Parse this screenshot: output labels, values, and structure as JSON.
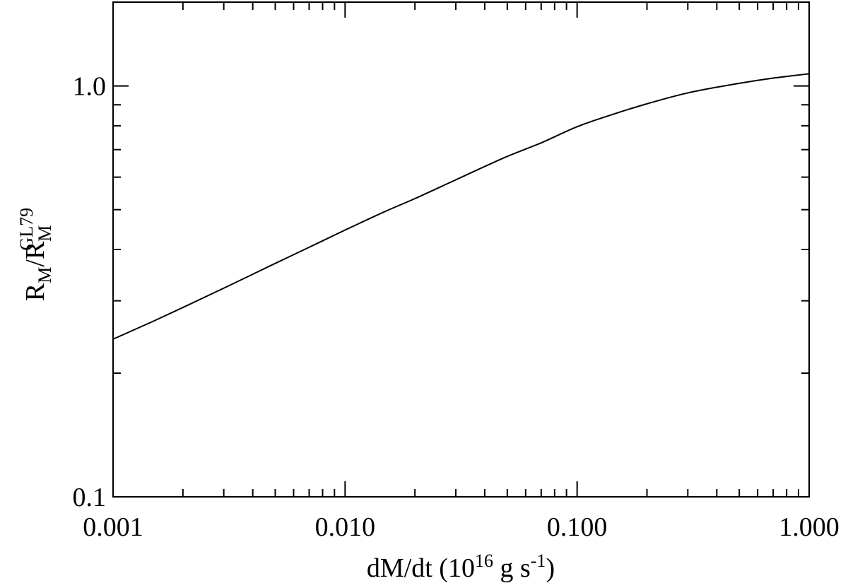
{
  "chart_data": {
    "type": "line",
    "xscale": "log",
    "yscale": "log",
    "xlim": [
      0.001,
      1.0
    ],
    "ylim": [
      0.1,
      1.6
    ],
    "grid": false,
    "xlabel": {
      "main": "dM/dt (10",
      "exponent": "16",
      "middle": " g s",
      "exponent2": "-1",
      "tail": ")"
    },
    "ylabel": {
      "r1": "R",
      "sub1": "M",
      "slash": "/R",
      "sub2": "M",
      "sup2": "GL79"
    },
    "x_ticks": [
      {
        "value": 0.001,
        "label": "0.001"
      },
      {
        "value": 0.01,
        "label": "0.010"
      },
      {
        "value": 0.1,
        "label": "0.100"
      },
      {
        "value": 1.0,
        "label": "1.000"
      }
    ],
    "y_ticks": [
      {
        "value": 0.1,
        "label": "0.1"
      },
      {
        "value": 1.0,
        "label": "1.0"
      }
    ],
    "series": [
      {
        "x": [
          0.001,
          0.0015,
          0.002,
          0.003,
          0.005,
          0.007,
          0.01,
          0.015,
          0.02,
          0.03,
          0.05,
          0.07,
          0.1,
          0.15,
          0.2,
          0.3,
          0.5,
          0.7,
          1.0
        ],
        "y": [
          0.242,
          0.268,
          0.289,
          0.322,
          0.37,
          0.405,
          0.446,
          0.496,
          0.532,
          0.591,
          0.674,
          0.727,
          0.796,
          0.861,
          0.905,
          0.962,
          1.015,
          1.045,
          1.071
        ]
      }
    ]
  }
}
